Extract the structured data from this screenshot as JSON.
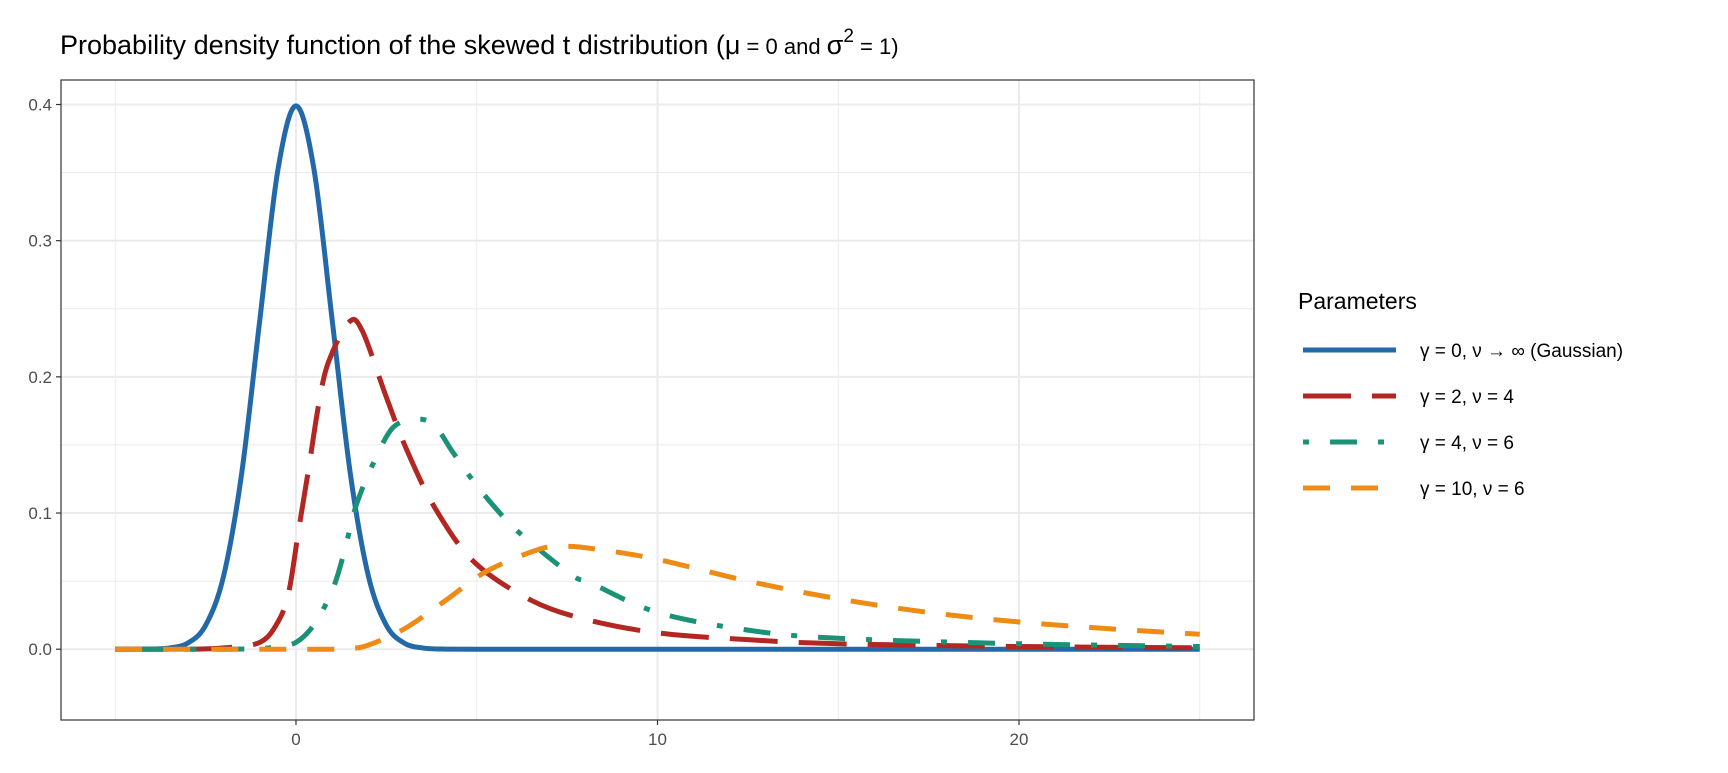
{
  "chart_data": {
    "type": "line",
    "title": {
      "text": "Probability density function of the skewed t distribution (",
      "mu": "μ",
      "eq0": " = 0 and ",
      "sigma": "σ",
      "sup": "2",
      "eq1": " = 1)"
    },
    "xlabel": "",
    "ylabel": "",
    "xlim": [
      -6.5,
      26.5
    ],
    "ylim": [
      -0.052,
      0.418
    ],
    "x_ticks": [
      0,
      10,
      20
    ],
    "x_tick_labels": [
      "0",
      "10",
      "20"
    ],
    "y_ticks": [
      0.0,
      0.1,
      0.2,
      0.3,
      0.4
    ],
    "y_tick_labels": [
      "0.0",
      "0.1",
      "0.2",
      "0.3",
      "0.4"
    ],
    "grid": true,
    "legend": {
      "title": "Parameters",
      "placement": "right"
    },
    "series": [
      {
        "name": "γ = 0, ν → ∞ (Gaussian)",
        "color": "#2369AA",
        "dash": "solid",
        "x": [
          -5,
          -4,
          -3.5,
          -3,
          -2.5,
          -2,
          -1.5,
          -1,
          -0.5,
          0,
          0.5,
          1,
          1.5,
          2,
          2.5,
          3,
          3.5,
          4,
          5,
          10,
          15,
          20,
          25
        ],
        "y": [
          0,
          0.0001,
          0.0009,
          0.0044,
          0.0175,
          0.054,
          0.1295,
          0.242,
          0.352,
          0.399,
          0.352,
          0.242,
          0.1295,
          0.054,
          0.0175,
          0.0044,
          0.0009,
          0.0001,
          0,
          0,
          0,
          0,
          0
        ]
      },
      {
        "name": "γ = 2, ν = 4",
        "color": "#B22722",
        "dash": "longdash",
        "x": [
          -5,
          -3,
          -2,
          -1,
          -0.5,
          -0.2,
          0.07,
          0.35,
          0.63,
          0.9,
          1.46,
          1.83,
          2.5,
          3.07,
          3.86,
          4.93,
          6.5,
          8,
          10,
          12.5,
          15,
          20,
          25
        ],
        "y": [
          0,
          0,
          0.001,
          0.005,
          0.02,
          0.042,
          0.087,
          0.1325,
          0.18,
          0.211,
          0.24,
          0.234,
          0.185,
          0.146,
          0.103,
          0.064,
          0.036,
          0.022,
          0.012,
          0.007,
          0.004,
          0.002,
          0.001
        ]
      },
      {
        "name": "γ = 4, ν = 6",
        "color": "#1B9275",
        "dash": "dotdash",
        "x": [
          -5,
          -2,
          -1,
          -0.5,
          0,
          0.5,
          1.0,
          1.32,
          1.6,
          1.85,
          2.13,
          2.69,
          3.4,
          3.87,
          4.33,
          4.89,
          5.54,
          6.2,
          7.6,
          8.2,
          10,
          12.5,
          15,
          20,
          25
        ],
        "y": [
          0,
          0,
          0.0005,
          0.002,
          0.005,
          0.018,
          0.043,
          0.07,
          0.1,
          0.119,
          0.136,
          0.163,
          0.169,
          0.163,
          0.145,
          0.124,
          0.103,
          0.085,
          0.055,
          0.048,
          0.027,
          0.014,
          0.008,
          0.004,
          0.002
        ]
      },
      {
        "name": "γ = 10, ν = 6",
        "color": "#EE8B15",
        "dash": "dashed",
        "x": [
          -5,
          0,
          1,
          1.5,
          2,
          3,
          4.15,
          5.26,
          6.74,
          7.5,
          8.3,
          10,
          12.5,
          15,
          17.5,
          20,
          22.5,
          25
        ],
        "y": [
          0,
          0,
          0,
          0.0005,
          0.003,
          0.015,
          0.036,
          0.057,
          0.0735,
          0.0755,
          0.0735,
          0.066,
          0.05,
          0.037,
          0.027,
          0.02,
          0.015,
          0.011
        ]
      }
    ]
  }
}
